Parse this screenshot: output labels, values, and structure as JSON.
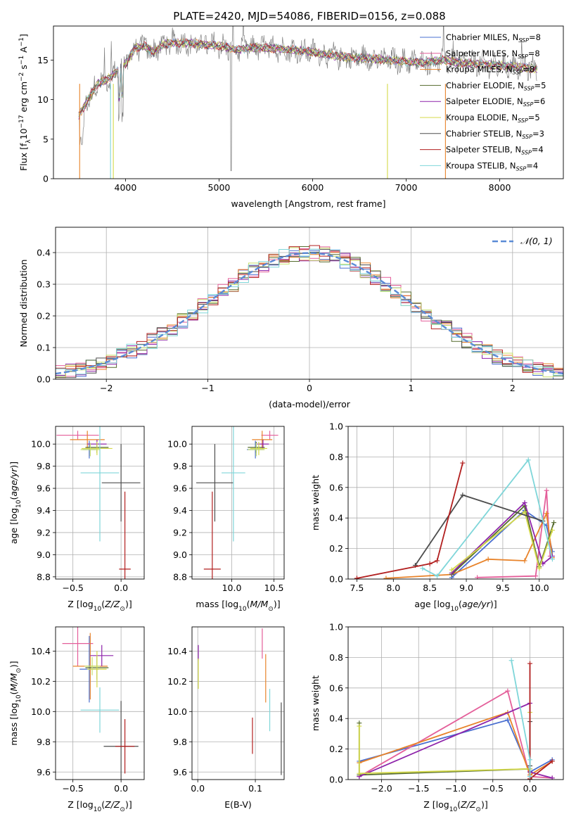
{
  "title": "PLATE=2420, MJD=54086, FIBERID=0156, z=0.088",
  "colors": {
    "grid": "#b0b0b0",
    "gauss": "#5b8bd6",
    "series": [
      "#4a6fd0",
      "#e45f9a",
      "#e8832a",
      "#556b2f",
      "#8e24aa",
      "#d4d94a",
      "#4d4d4d",
      "#b21f1f",
      "#7fd6d9",
      "#c8e06a",
      "#555555"
    ]
  },
  "chart_data": [
    {
      "id": "spectrum",
      "type": "line",
      "title": "PLATE=2420, MJD=54086, FIBERID=0156, z=0.088",
      "xlabel": "wavelength [Angstrom, rest frame]",
      "ylabel": "Flux [f_λ10^-17 erg cm^-2 s^-1 A^-1]",
      "xlim": [
        3230,
        8680
      ],
      "ylim": [
        0,
        19.3
      ],
      "xticks": [
        4000,
        5000,
        6000,
        7000,
        8000
      ],
      "yticks": [
        0,
        5,
        10,
        15
      ],
      "grid": false,
      "legend_position": "top-right",
      "series": [
        {
          "name": "Chabrier MILES, N_SSP=8",
          "color": "#4a6fd0"
        },
        {
          "name": "Salpeter MILES, N_SSP=8",
          "color": "#e45f9a"
        },
        {
          "name": "Kroupa MILES, N_SSP=8",
          "color": "#e8832a"
        },
        {
          "name": "Chabrier ELODIE, N_SSP=5",
          "color": "#556b2f"
        },
        {
          "name": "Salpeter ELODIE, N_SSP=6",
          "color": "#8e24aa"
        },
        {
          "name": "Kroupa ELODIE, N_SSP=5",
          "color": "#d4d94a"
        },
        {
          "name": "Chabrier STELIB, N_SSP=3",
          "color": "#4d4d4d"
        },
        {
          "name": "Salpeter STELIB, N_SSP=4",
          "color": "#b21f1f"
        },
        {
          "name": "Kroupa STELIB, N_SSP=4",
          "color": "#7fd6d9"
        }
      ],
      "continuum": [
        [
          3500,
          8
        ],
        [
          3600,
          10
        ],
        [
          3700,
          12
        ],
        [
          3800,
          12.5
        ],
        [
          3900,
          13.5
        ],
        [
          4000,
          14.5
        ],
        [
          4100,
          16.5
        ],
        [
          4200,
          16.8
        ],
        [
          4300,
          16
        ],
        [
          4400,
          17
        ],
        [
          4600,
          17.2
        ],
        [
          4800,
          17
        ],
        [
          5000,
          16.8
        ],
        [
          5200,
          16.3
        ],
        [
          5400,
          16.6
        ],
        [
          5600,
          16.5
        ],
        [
          5800,
          16.3
        ],
        [
          6000,
          16
        ],
        [
          6200,
          15.6
        ],
        [
          6400,
          15.3
        ],
        [
          6600,
          15.2
        ],
        [
          6800,
          15
        ],
        [
          7000,
          14.8
        ],
        [
          7200,
          14.7
        ],
        [
          7400,
          15
        ],
        [
          7600,
          14.6
        ],
        [
          7800,
          14.5
        ],
        [
          8000,
          14.3
        ],
        [
          8200,
          14.1
        ],
        [
          8400,
          13.9
        ]
      ]
    },
    {
      "id": "residuals",
      "type": "bar",
      "xlabel": "(data-model)/error",
      "ylabel": "Normed distribution",
      "xlim": [
        -2.5,
        2.5
      ],
      "ylim": [
        0,
        0.48
      ],
      "xticks": [
        -2,
        -1,
        0,
        1,
        2
      ],
      "yticks": [
        0.0,
        0.1,
        0.2,
        0.3,
        0.4
      ],
      "grid": true,
      "legend": "N(0,1)",
      "legend_position": "top-right",
      "bin_width": 0.1
    },
    {
      "id": "age_vs_Z",
      "type": "scatter",
      "xlabel": "Z [log10(Z/Z⊙)]",
      "ylabel": "age [log10(age/yr)]",
      "xlim": [
        -0.68,
        0.24
      ],
      "ylim": [
        8.78,
        10.16
      ],
      "xticks": [
        -0.5,
        0.0
      ],
      "yticks": [
        8.8,
        9.0,
        9.2,
        9.4,
        9.6,
        9.8,
        10.0
      ],
      "grid": true,
      "points": [
        {
          "x": -0.33,
          "y": 9.95,
          "xerr": 0.07,
          "yerr": 0.08,
          "color": "#4a6fd0"
        },
        {
          "x": -0.45,
          "y": 10.08,
          "xerr": 0.22,
          "yerr": 0.04,
          "color": "#e45f9a"
        },
        {
          "x": -0.35,
          "y": 10.04,
          "xerr": 0.18,
          "yerr": 0.08,
          "color": "#e8832a"
        },
        {
          "x": -0.25,
          "y": 9.97,
          "xerr": 0.12,
          "yerr": 0.05,
          "color": "#556b2f"
        },
        {
          "x": -0.25,
          "y": 10.0,
          "xerr": 0.1,
          "yerr": 0.04,
          "color": "#8e24aa"
        },
        {
          "x": -0.25,
          "y": 9.96,
          "xerr": 0.16,
          "yerr": 0.06,
          "color": "#d4d94a"
        },
        {
          "x": -0.0,
          "y": 9.65,
          "xerr": 0.2,
          "yerr": 0.35,
          "color": "#4d4d4d"
        },
        {
          "x": 0.04,
          "y": 8.87,
          "xerr": 0.06,
          "yerr": 0.7,
          "color": "#b21f1f"
        },
        {
          "x": -0.22,
          "y": 9.74,
          "xerr": 0.2,
          "yerr": 0.62,
          "color": "#7fd6d9"
        },
        {
          "x": -0.32,
          "y": 9.95,
          "xerr": 0.1,
          "yerr": 0.06,
          "color": "#c8e06a"
        }
      ]
    },
    {
      "id": "age_vs_mass",
      "type": "scatter",
      "xlabel": "mass [log10(M/M⊙)]",
      "ylabel": "",
      "xlim": [
        9.53,
        10.62
      ],
      "ylim": [
        8.78,
        10.16
      ],
      "xticks": [
        9.5,
        10.0,
        10.5
      ],
      "yticks": [
        8.8,
        9.0,
        9.2,
        9.4,
        9.6,
        9.8,
        10.0
      ],
      "grid": true,
      "points": [
        {
          "x": 10.28,
          "y": 9.95,
          "xerr": 0.1,
          "yerr": 0.08,
          "color": "#4a6fd0"
        },
        {
          "x": 10.45,
          "y": 10.08,
          "xerr": 0.1,
          "yerr": 0.04,
          "color": "#e45f9a"
        },
        {
          "x": 10.36,
          "y": 10.04,
          "xerr": 0.12,
          "yerr": 0.08,
          "color": "#e8832a"
        },
        {
          "x": 10.29,
          "y": 9.97,
          "xerr": 0.1,
          "yerr": 0.05,
          "color": "#556b2f"
        },
        {
          "x": 10.37,
          "y": 10.0,
          "xerr": 0.07,
          "yerr": 0.04,
          "color": "#8e24aa"
        },
        {
          "x": 10.32,
          "y": 9.96,
          "xerr": 0.1,
          "yerr": 0.06,
          "color": "#d4d94a"
        },
        {
          "x": 9.8,
          "y": 9.65,
          "xerr": 0.22,
          "yerr": 0.35,
          "color": "#4d4d4d"
        },
        {
          "x": 9.77,
          "y": 8.87,
          "xerr": 0.1,
          "yerr": 0.7,
          "color": "#b21f1f"
        },
        {
          "x": 10.02,
          "y": 9.74,
          "xerr": 0.14,
          "yerr": 0.62,
          "color": "#7fd6d9"
        },
        {
          "x": 10.29,
          "y": 9.95,
          "xerr": 0.1,
          "yerr": 0.06,
          "color": "#c8e06a"
        }
      ]
    },
    {
      "id": "massweight_vs_age",
      "type": "line",
      "xlabel": "age [log10(age/yr)]",
      "ylabel": "mass weight",
      "xlim": [
        7.38,
        10.33
      ],
      "ylim": [
        0,
        1.0
      ],
      "xticks": [
        7.5,
        8.0,
        8.5,
        9.0,
        9.5,
        10.0
      ],
      "yticks": [
        0.0,
        0.2,
        0.4,
        0.6,
        0.8,
        1.0
      ],
      "grid": true,
      "series": [
        {
          "color": "#4a6fd0",
          "points": [
            [
              8.8,
              0.01
            ],
            [
              9.8,
              0.45
            ],
            [
              10.1,
              0.35
            ],
            [
              10.18,
              0.18
            ]
          ]
        },
        {
          "color": "#e45f9a",
          "points": [
            [
              9.15,
              0.01
            ],
            [
              9.95,
              0.02
            ],
            [
              10.1,
              0.58
            ],
            [
              10.15,
              0.15
            ]
          ]
        },
        {
          "color": "#e8832a",
          "points": [
            [
              7.9,
              0.005
            ],
            [
              8.8,
              0.03
            ],
            [
              9.3,
              0.13
            ],
            [
              9.8,
              0.12
            ],
            [
              10.1,
              0.43
            ],
            [
              10.18,
              0.14
            ]
          ]
        },
        {
          "color": "#556b2f",
          "points": [
            [
              8.8,
              0.03
            ],
            [
              9.8,
              0.48
            ],
            [
              10.0,
              0.08
            ],
            [
              10.2,
              0.37
            ]
          ]
        },
        {
          "color": "#8e24aa",
          "points": [
            [
              8.8,
              0.04
            ],
            [
              9.8,
              0.5
            ],
            [
              10.05,
              0.1
            ],
            [
              10.18,
              0.15
            ]
          ]
        },
        {
          "color": "#d4d94a",
          "points": [
            [
              8.8,
              0.06
            ],
            [
              9.8,
              0.44
            ],
            [
              10.0,
              0.07
            ],
            [
              10.18,
              0.32
            ]
          ]
        },
        {
          "color": "#4d4d4d",
          "points": [
            [
              8.3,
              0.09
            ],
            [
              8.95,
              0.55
            ],
            [
              10.05,
              0.38
            ]
          ]
        },
        {
          "color": "#b21f1f",
          "points": [
            [
              7.5,
              0.005
            ],
            [
              8.5,
              0.1
            ],
            [
              8.6,
              0.12
            ],
            [
              8.95,
              0.76
            ]
          ]
        },
        {
          "color": "#7fd6d9",
          "points": [
            [
              8.4,
              0.07
            ],
            [
              8.6,
              0.02
            ],
            [
              9.85,
              0.78
            ],
            [
              10.18,
              0.13
            ]
          ]
        }
      ]
    },
    {
      "id": "mass_vs_Z",
      "type": "scatter",
      "xlabel": "Z [log10(Z/Z⊙)]",
      "ylabel": "mass [log10(M/M⊙)]",
      "xlim": [
        -0.68,
        0.24
      ],
      "ylim": [
        9.55,
        10.56
      ],
      "xticks": [
        -0.5,
        0.0
      ],
      "yticks": [
        9.6,
        9.8,
        10.0,
        10.2,
        10.4
      ],
      "grid": true,
      "points": [
        {
          "x": -0.33,
          "y": 10.28,
          "xerr": 0.1,
          "yerr": 0.22,
          "color": "#4a6fd0"
        },
        {
          "x": -0.45,
          "y": 10.45,
          "xerr": 0.16,
          "yerr": 0.15,
          "color": "#e45f9a"
        },
        {
          "x": -0.32,
          "y": 10.3,
          "xerr": 0.18,
          "yerr": 0.22,
          "color": "#e8832a"
        },
        {
          "x": -0.25,
          "y": 10.29,
          "xerr": 0.12,
          "yerr": 0.08,
          "color": "#556b2f"
        },
        {
          "x": -0.2,
          "y": 10.37,
          "xerr": 0.12,
          "yerr": 0.07,
          "color": "#8e24aa"
        },
        {
          "x": -0.25,
          "y": 10.28,
          "xerr": 0.1,
          "yerr": 0.12,
          "color": "#d4d94a"
        },
        {
          "x": -0.0,
          "y": 9.77,
          "xerr": 0.18,
          "yerr": 0.3,
          "color": "#4d4d4d"
        },
        {
          "x": 0.04,
          "y": 9.77,
          "xerr": 0.1,
          "yerr": 0.18,
          "color": "#b21f1f"
        },
        {
          "x": -0.22,
          "y": 10.01,
          "xerr": 0.2,
          "yerr": 0.15,
          "color": "#7fd6d9"
        },
        {
          "x": -0.3,
          "y": 10.3,
          "xerr": 0.08,
          "yerr": 0.06,
          "color": "#c8e06a"
        }
      ]
    },
    {
      "id": "mass_vs_ebv",
      "type": "scatter",
      "xlabel": "E(B-V)",
      "ylabel": "",
      "xlim": [
        -0.01,
        0.15
      ],
      "ylim": [
        9.55,
        10.56
      ],
      "xticks": [
        0.0,
        0.1
      ],
      "yticks": [
        9.6,
        9.8,
        10.0,
        10.2,
        10.4
      ],
      "grid": true,
      "points": [
        {
          "x": 0.001,
          "y": 10.39,
          "xerr": 0,
          "yerr": 0.05,
          "color": "#8e24aa"
        },
        {
          "x": 0.001,
          "y": 10.25,
          "xerr": 0,
          "yerr": 0.1,
          "color": "#d4d94a"
        },
        {
          "x": 0.112,
          "y": 10.45,
          "xerr": 0,
          "yerr": 0.1,
          "color": "#e45f9a"
        },
        {
          "x": 0.118,
          "y": 10.22,
          "xerr": 0,
          "yerr": 0.16,
          "color": "#e8832a"
        },
        {
          "x": 0.125,
          "y": 10.01,
          "xerr": 0,
          "yerr": 0.14,
          "color": "#7fd6d9"
        },
        {
          "x": 0.145,
          "y": 9.82,
          "xerr": 0,
          "yerr": 0.24,
          "color": "#4d4d4d"
        },
        {
          "x": 0.095,
          "y": 9.84,
          "xerr": 0,
          "yerr": 0.12,
          "color": "#b21f1f"
        }
      ]
    },
    {
      "id": "massweight_vs_Z",
      "type": "line",
      "xlabel": "Z [log10(Z/Z⊙)]",
      "ylabel": "mass weight",
      "xlim": [
        -2.45,
        0.45
      ],
      "ylim": [
        0,
        1.0
      ],
      "xticks": [
        -2.0,
        -1.5,
        -1.0,
        -0.5,
        0.0
      ],
      "yticks": [
        0.0,
        0.2,
        0.4,
        0.6,
        0.8,
        1.0
      ],
      "grid": true,
      "series": [
        {
          "color": "#4a6fd0",
          "points": [
            [
              -2.3,
              0.12
            ],
            [
              -0.3,
              0.39
            ],
            [
              0.0,
              0.05
            ],
            [
              0.3,
              0.13
            ]
          ]
        },
        {
          "color": "#e45f9a",
          "points": [
            [
              -2.3,
              0.02
            ],
            [
              -0.3,
              0.58
            ],
            [
              0.0,
              0.02
            ],
            [
              0.3,
              0.01
            ]
          ]
        },
        {
          "color": "#e8832a",
          "points": [
            [
              -2.3,
              0.11
            ],
            [
              -0.3,
              0.44
            ],
            [
              0.0,
              0.03
            ],
            [
              0.3,
              0.12
            ]
          ]
        },
        {
          "color": "#556b2f",
          "points": [
            [
              -2.3,
              0.37
            ],
            [
              -2.3,
              0.03
            ],
            [
              0.0,
              0.07
            ]
          ]
        },
        {
          "color": "#8e24aa",
          "points": [
            [
              -2.3,
              0.02
            ],
            [
              0.0,
              0.5
            ],
            [
              0.0,
              0.05
            ],
            [
              0.3,
              0.01
            ]
          ]
        },
        {
          "color": "#d4d94a",
          "points": [
            [
              -2.3,
              0.35
            ],
            [
              -2.3,
              0.04
            ],
            [
              0.0,
              0.07
            ],
            [
              0.0,
              0.44
            ]
          ]
        },
        {
          "color": "#4d4d4d",
          "points": [
            [
              0.0,
              0.38
            ],
            [
              0.0,
              0.09
            ]
          ]
        },
        {
          "color": "#b21f1f",
          "points": [
            [
              0.0,
              0.76
            ],
            [
              0.0,
              0.005
            ],
            [
              0.3,
              0.12
            ]
          ]
        },
        {
          "color": "#7fd6d9",
          "points": [
            [
              -0.25,
              0.78
            ],
            [
              0.0,
              0.13
            ],
            [
              0.0,
              0.02
            ]
          ]
        }
      ]
    }
  ]
}
